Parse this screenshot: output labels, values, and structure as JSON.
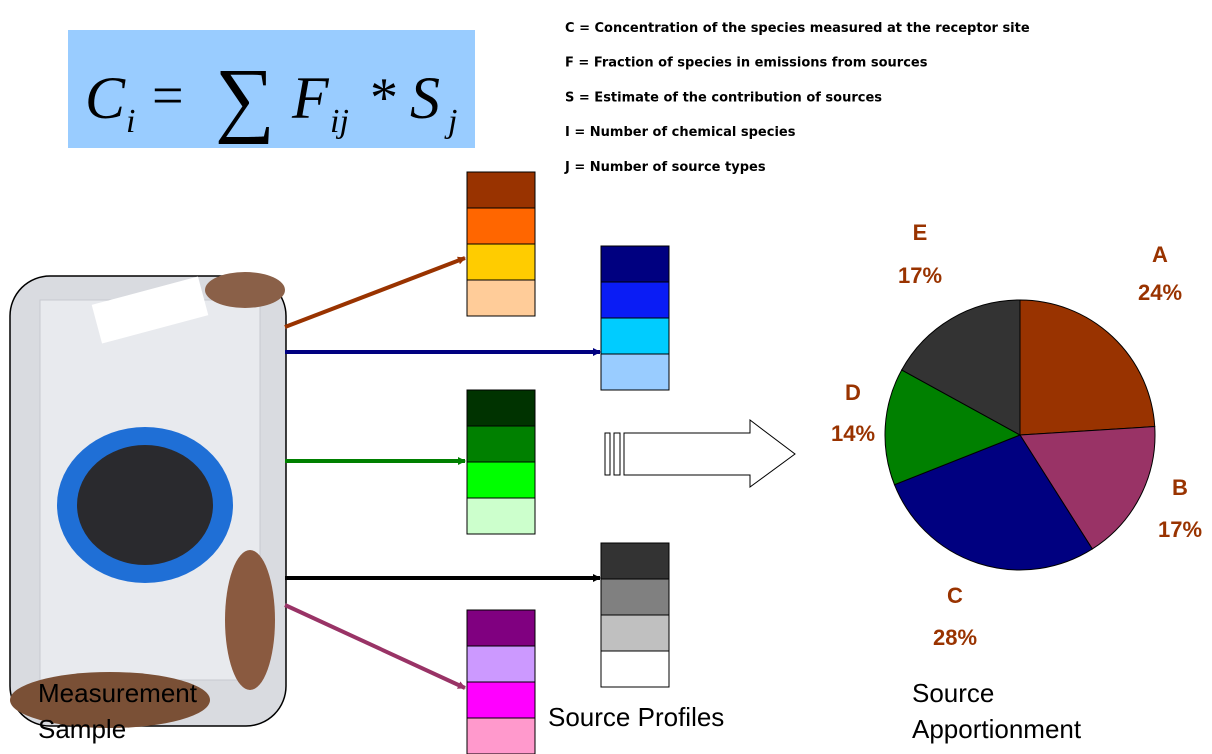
{
  "formula": {
    "parts": [
      "C",
      "i",
      "=",
      "∑",
      "F",
      "ij",
      "*",
      "S",
      "j"
    ]
  },
  "definitions": [
    "C = Concentration of the species measured at the receptor site",
    "F = Fraction of species in emissions from sources",
    "S = Estimate of the contribution of sources",
    "I = Number of chemical species",
    "J = Number of source types"
  ],
  "measurement_label": [
    "Measurement",
    "Sample"
  ],
  "profiles_label": "Source Profiles",
  "apportionment_label": [
    "Source",
    "Apportionment"
  ],
  "profiles": [
    {
      "arrow_color": "#993300",
      "colors": [
        "#993300",
        "#ff6600",
        "#ffcc00",
        "#ffcc99"
      ]
    },
    {
      "arrow_color": "#000080",
      "colors": [
        "#000080",
        "#0a1cf5",
        "#00ccff",
        "#99ccff"
      ]
    },
    {
      "arrow_color": "#008000",
      "colors": [
        "#003300",
        "#008000",
        "#00ff00",
        "#ccffcc"
      ]
    },
    {
      "arrow_color": "#000000",
      "colors": [
        "#333333",
        "#808080",
        "#c0c0c0",
        "#ffffff"
      ]
    },
    {
      "arrow_color": "#993366",
      "colors": [
        "#800080",
        "#cc99ff",
        "#ff00ff",
        "#ff99cc"
      ]
    }
  ],
  "pie": {
    "type": "pie",
    "label_color": "#993300",
    "slices": [
      {
        "name": "A",
        "value": 24,
        "value_label": "24%",
        "color": "#993300"
      },
      {
        "name": "B",
        "value": 17,
        "value_label": "17%",
        "color": "#993366"
      },
      {
        "name": "C",
        "value": 28,
        "value_label": "28%",
        "color": "#000080"
      },
      {
        "name": "D",
        "value": 14,
        "value_label": "14%",
        "color": "#008000"
      },
      {
        "name": "E",
        "value": 17,
        "value_label": "17%",
        "color": "#333333"
      }
    ]
  }
}
